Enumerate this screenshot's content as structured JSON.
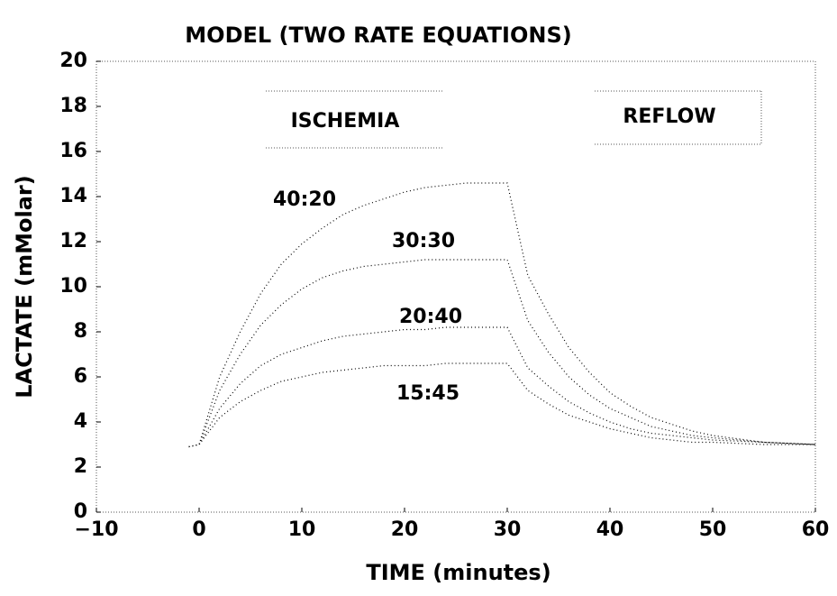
{
  "chart_data": {
    "type": "line",
    "title": "MODEL (TWO RATE EQUATIONS)",
    "x_label": "TIME (minutes)",
    "y_label": "LACTATE (mMolar)",
    "annotations": [
      "ISCHEMIA",
      "REFLOW"
    ],
    "x": [
      -1,
      0,
      2,
      4,
      6,
      8,
      10,
      12,
      14,
      16,
      18,
      20,
      22,
      24,
      26,
      28,
      30,
      32,
      34,
      36,
      38,
      40,
      42,
      44,
      46,
      48,
      50,
      55,
      60
    ],
    "series": [
      {
        "name": "40:20",
        "color": "#000000",
        "values": [
          2.9,
          3.0,
          6.0,
          8.0,
          9.7,
          11.0,
          11.9,
          12.6,
          13.2,
          13.6,
          13.9,
          14.2,
          14.4,
          14.5,
          14.6,
          14.6,
          14.6,
          10.5,
          8.8,
          7.3,
          6.2,
          5.3,
          4.7,
          4.2,
          3.9,
          3.6,
          3.4,
          3.1,
          3.0
        ]
      },
      {
        "name": "30:30",
        "color": "#000000",
        "values": [
          2.9,
          3.0,
          5.4,
          7.0,
          8.3,
          9.2,
          9.9,
          10.4,
          10.7,
          10.9,
          11.0,
          11.1,
          11.2,
          11.2,
          11.2,
          11.2,
          11.2,
          8.5,
          7.1,
          6.0,
          5.2,
          4.6,
          4.2,
          3.8,
          3.6,
          3.4,
          3.3,
          3.1,
          3.0
        ]
      },
      {
        "name": "20:40",
        "color": "#000000",
        "values": [
          2.9,
          3.0,
          4.6,
          5.7,
          6.5,
          7.0,
          7.3,
          7.6,
          7.8,
          7.9,
          8.0,
          8.1,
          8.1,
          8.2,
          8.2,
          8.2,
          8.2,
          6.4,
          5.6,
          4.9,
          4.4,
          4.0,
          3.7,
          3.5,
          3.4,
          3.3,
          3.2,
          3.1,
          3.0
        ]
      },
      {
        "name": "15:45",
        "color": "#000000",
        "values": [
          2.9,
          3.0,
          4.2,
          4.9,
          5.4,
          5.8,
          6.0,
          6.2,
          6.3,
          6.4,
          6.5,
          6.5,
          6.5,
          6.6,
          6.6,
          6.6,
          6.6,
          5.4,
          4.8,
          4.3,
          4.0,
          3.7,
          3.5,
          3.3,
          3.2,
          3.1,
          3.1,
          3.0,
          3.0
        ]
      }
    ],
    "xlim": [
      -10,
      60
    ],
    "xticks": [
      {
        "value": -10,
        "label": "−10"
      },
      0,
      10,
      20,
      30,
      40,
      50,
      60
    ],
    "ylim": [
      0,
      20
    ],
    "yticks": [
      0,
      2,
      4,
      6,
      8,
      10,
      12,
      14,
      16,
      18,
      20
    ],
    "grid": false
  }
}
